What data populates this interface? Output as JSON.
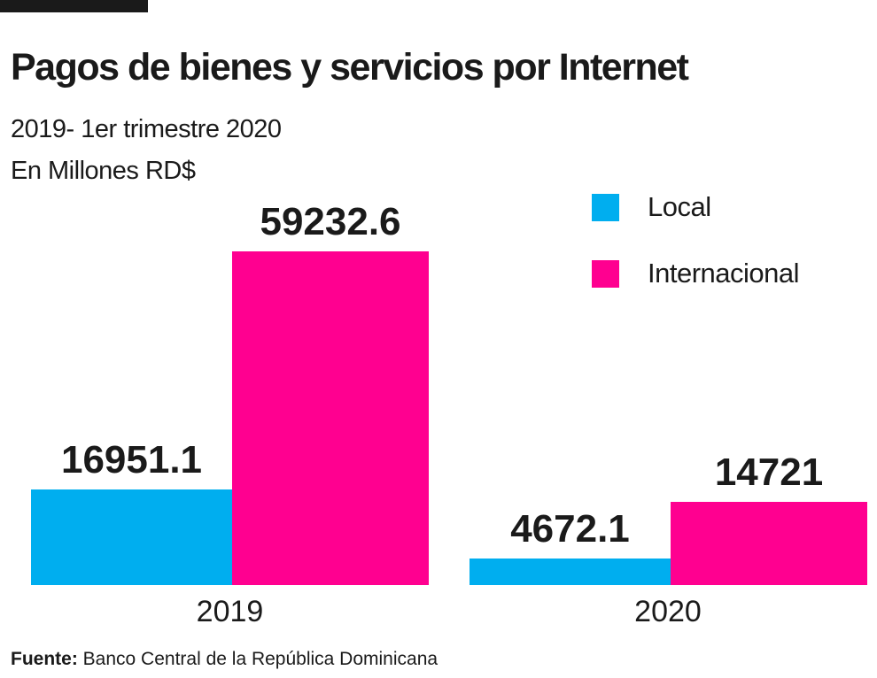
{
  "chart_data": {
    "type": "bar",
    "title": "Pagos de bienes y servicios por Internet",
    "subtitle": [
      "2019- 1er trimestre 2020",
      "En Millones RD$"
    ],
    "categories": [
      "2019",
      "2020"
    ],
    "series": [
      {
        "name": "Local",
        "values": [
          16951.1,
          4672.1
        ],
        "color": "#00AEEF",
        "labels": [
          "16951.1",
          "4672.1"
        ]
      },
      {
        "name": "Internacional",
        "values": [
          59232.6,
          14721
        ],
        "color": "#FF0090",
        "labels": [
          "59232.6",
          "14721"
        ]
      }
    ],
    "legend_position": "top-right",
    "grid": false,
    "y_axis_visible": false,
    "ylim": [
      0,
      59232.6
    ]
  },
  "source": {
    "label": "Fuente:",
    "text": "Banco Central de la República Dominicana"
  }
}
